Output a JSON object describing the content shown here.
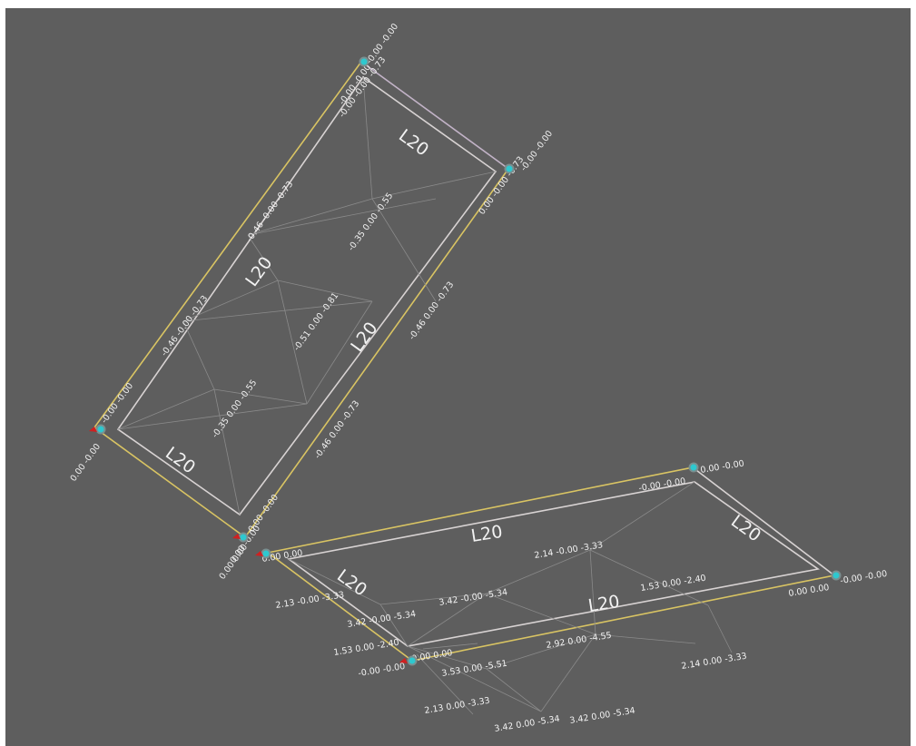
{
  "colors": {
    "background": "#5e5e5e",
    "member_yellow": "#d9c463",
    "member_white": "#d8d3d3",
    "node": "#2ec8cf",
    "support": "#d02020",
    "text": "#f2f2f2"
  },
  "plates": {
    "upper": {
      "labels": [
        "L20",
        "L20",
        "L20",
        "L20"
      ],
      "stress_values": [
        "-0.00 -0.00 -0.73",
        "-0.46 -0.00 -0.73",
        "-0.35 0.00 -0.55",
        "-0.51 0.00 -0.81",
        "-0.35 0.00 -0.55",
        "0.00 -0.00 -0.73",
        "-0.46 0.00 -0.73",
        "-0.46 0.00 -0.73",
        "-0.46 -0.00 -0.73"
      ],
      "node_values": [
        "-0.00 -0.00",
        "-0.00 -0.00",
        "-0.00 -0.00",
        "0.00 -0.00",
        "-0.00 -0.00",
        "0.00 -0.00",
        "0.00 -0.00"
      ]
    },
    "lower": {
      "labels": [
        "L20",
        "L20",
        "L20",
        "L20"
      ],
      "stress_values": [
        "2.14 -0.00 -3.33",
        "1.53 0.00 -2.40",
        "2.92 0.00 -4.55",
        "2.14 0.00 -3.33",
        "2.13 -0.00 -3.33",
        "3.42 -0.00 -5.34",
        "3.42 -0.00 -5.34",
        "1.53 0.00 -2.40",
        "3.53 0.00 -5.51",
        "2.13 0.00 -3.33",
        "3.42 0.00 -5.34",
        "3.42 0.00 -5.34"
      ],
      "node_values": [
        "-0.00 -0.00",
        "0.00 -0.00",
        "-0.00 -0.00",
        "0.00 0.00",
        "0.00 0.00",
        "0.00 0.00",
        "-0.00 -0.00",
        "0.00 0.00"
      ]
    }
  }
}
